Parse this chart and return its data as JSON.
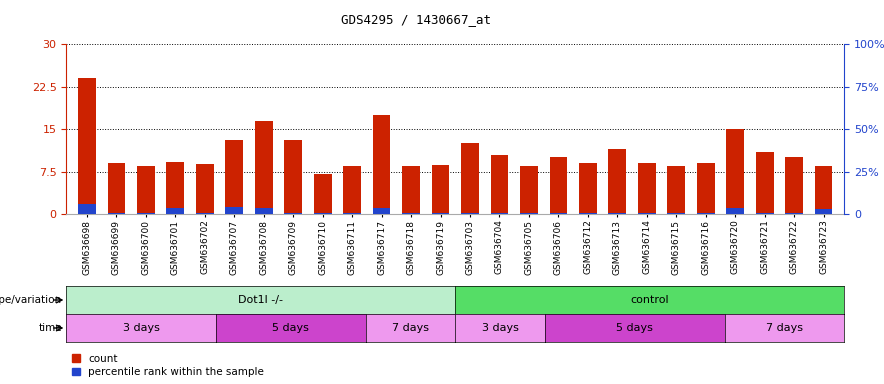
{
  "title": "GDS4295 / 1430667_at",
  "samples": [
    "GSM636698",
    "GSM636699",
    "GSM636700",
    "GSM636701",
    "GSM636702",
    "GSM636707",
    "GSM636708",
    "GSM636709",
    "GSM636710",
    "GSM636711",
    "GSM636717",
    "GSM636718",
    "GSM636719",
    "GSM636703",
    "GSM636704",
    "GSM636705",
    "GSM636706",
    "GSM636712",
    "GSM636713",
    "GSM636714",
    "GSM636715",
    "GSM636716",
    "GSM636720",
    "GSM636721",
    "GSM636722",
    "GSM636723"
  ],
  "counts": [
    24.0,
    9.0,
    8.5,
    9.2,
    8.8,
    13.0,
    16.5,
    13.0,
    7.0,
    8.5,
    17.5,
    8.5,
    8.7,
    12.5,
    10.5,
    8.5,
    10.0,
    9.0,
    11.5,
    9.0,
    8.5,
    9.0,
    15.0,
    11.0,
    10.0,
    8.5
  ],
  "percentile_ranks": [
    6.0,
    0.5,
    0.5,
    3.5,
    0.5,
    4.0,
    3.5,
    0.5,
    0.5,
    0.5,
    3.5,
    0.5,
    0.5,
    0.5,
    0.5,
    0.5,
    0.5,
    0.5,
    0.5,
    0.5,
    0.5,
    0.5,
    3.5,
    0.5,
    0.5,
    3.0
  ],
  "bar_color": "#cc2200",
  "percentile_color": "#2244cc",
  "ylim_left": [
    0,
    30
  ],
  "ylim_right": [
    0,
    100
  ],
  "yticks_left": [
    0,
    7.5,
    15,
    22.5,
    30
  ],
  "yticks_right": [
    0,
    25,
    50,
    75,
    100
  ],
  "ytick_labels_left": [
    "0",
    "7.5",
    "15",
    "22.5",
    "30"
  ],
  "ytick_labels_right": [
    "0",
    "25%",
    "50%",
    "75%",
    "100%"
  ],
  "groups": [
    {
      "label": "Dot1l -/-",
      "start": 0,
      "end": 12,
      "color": "#bbeecc"
    },
    {
      "label": "control",
      "start": 13,
      "end": 25,
      "color": "#55dd66"
    }
  ],
  "time_groups": [
    {
      "label": "3 days",
      "start": 0,
      "end": 4,
      "color": "#ee99ee"
    },
    {
      "label": "5 days",
      "start": 5,
      "end": 9,
      "color": "#cc44cc"
    },
    {
      "label": "7 days",
      "start": 10,
      "end": 12,
      "color": "#ee99ee"
    },
    {
      "label": "3 days",
      "start": 13,
      "end": 15,
      "color": "#ee99ee"
    },
    {
      "label": "5 days",
      "start": 16,
      "end": 21,
      "color": "#cc44cc"
    },
    {
      "label": "7 days",
      "start": 22,
      "end": 25,
      "color": "#ee99ee"
    }
  ],
  "genotype_label": "genotype/variation",
  "time_label": "time",
  "legend_count_label": "count",
  "legend_percentile_label": "percentile rank within the sample",
  "plot_bg_color": "#ffffff",
  "bar_width": 0.6,
  "grid_color": "#000000"
}
